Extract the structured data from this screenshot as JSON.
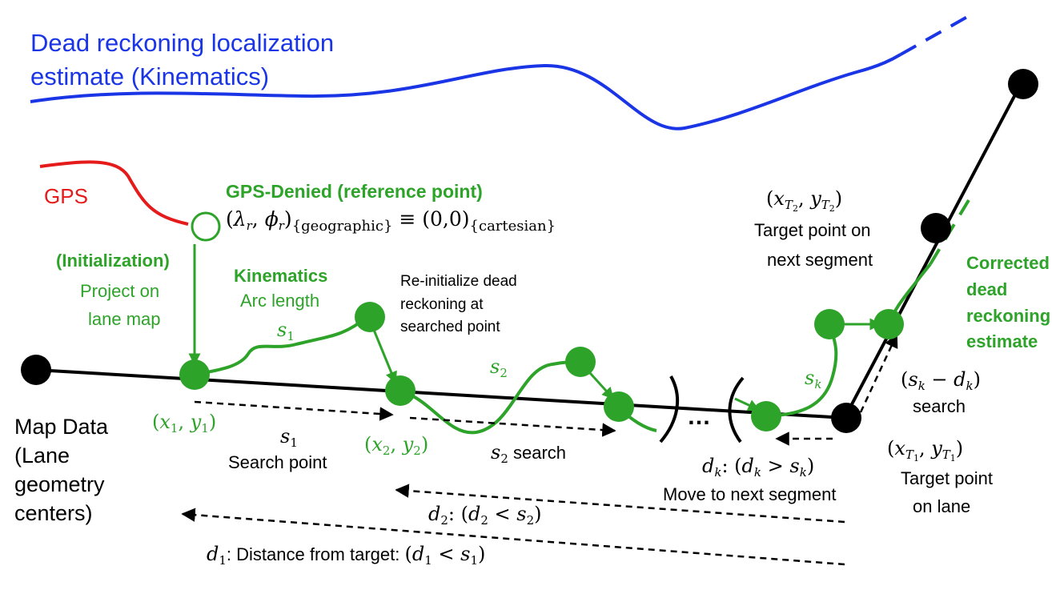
{
  "colors": {
    "dead_reckoning": "#1a35e6",
    "gps": "#e51b1b",
    "green": "#2ea32a",
    "map": "#000000"
  },
  "labels": {
    "dr_title_1": "Dead reckoning localization",
    "dr_title_2": "estimate (Kinematics)",
    "gps": "GPS",
    "gps_denied": "GPS-Denied (reference point)",
    "ref_point_lhs": "(λ",
    "ref_point_eq": "≡ (0,0)",
    "ref_geo": "{geographic}",
    "ref_cart": "{cartesian}",
    "init_1": "(Initialization)",
    "init_2": "Project on",
    "init_3": "lane map",
    "kin_1": "Kinematics",
    "kin_2": "Arc length",
    "s1_arc": "s",
    "reinit_1": "Re-initialize dead",
    "reinit_2": "reckoning at",
    "reinit_3": "searched point",
    "s2_arc": "s",
    "sk_arc": "s",
    "target2_line1": "(x",
    "target2_line2": "Target point on",
    "target2_line3": "next segment",
    "corrected_1": "Corrected",
    "corrected_2": "dead",
    "corrected_3": "reckoning",
    "corrected_4": "estimate",
    "skdk_line1": "(s",
    "skdk_line2": "search",
    "target1_line2": "Target point",
    "target1_line3": "on lane",
    "map_1": "Map Data",
    "map_2": "(Lane",
    "map_3": "geometry",
    "map_4": "centers)",
    "x1y1": "(x",
    "x2y2": "(x",
    "s1_search_1": "s",
    "s1_search_2": "Search point",
    "s2_search": "search",
    "ellipsis": "…",
    "dk_line1": ": (d",
    "dk_line2": "Move to next segment",
    "d2_line": ": (d",
    "d1_text": ": Distance from target: (d"
  }
}
